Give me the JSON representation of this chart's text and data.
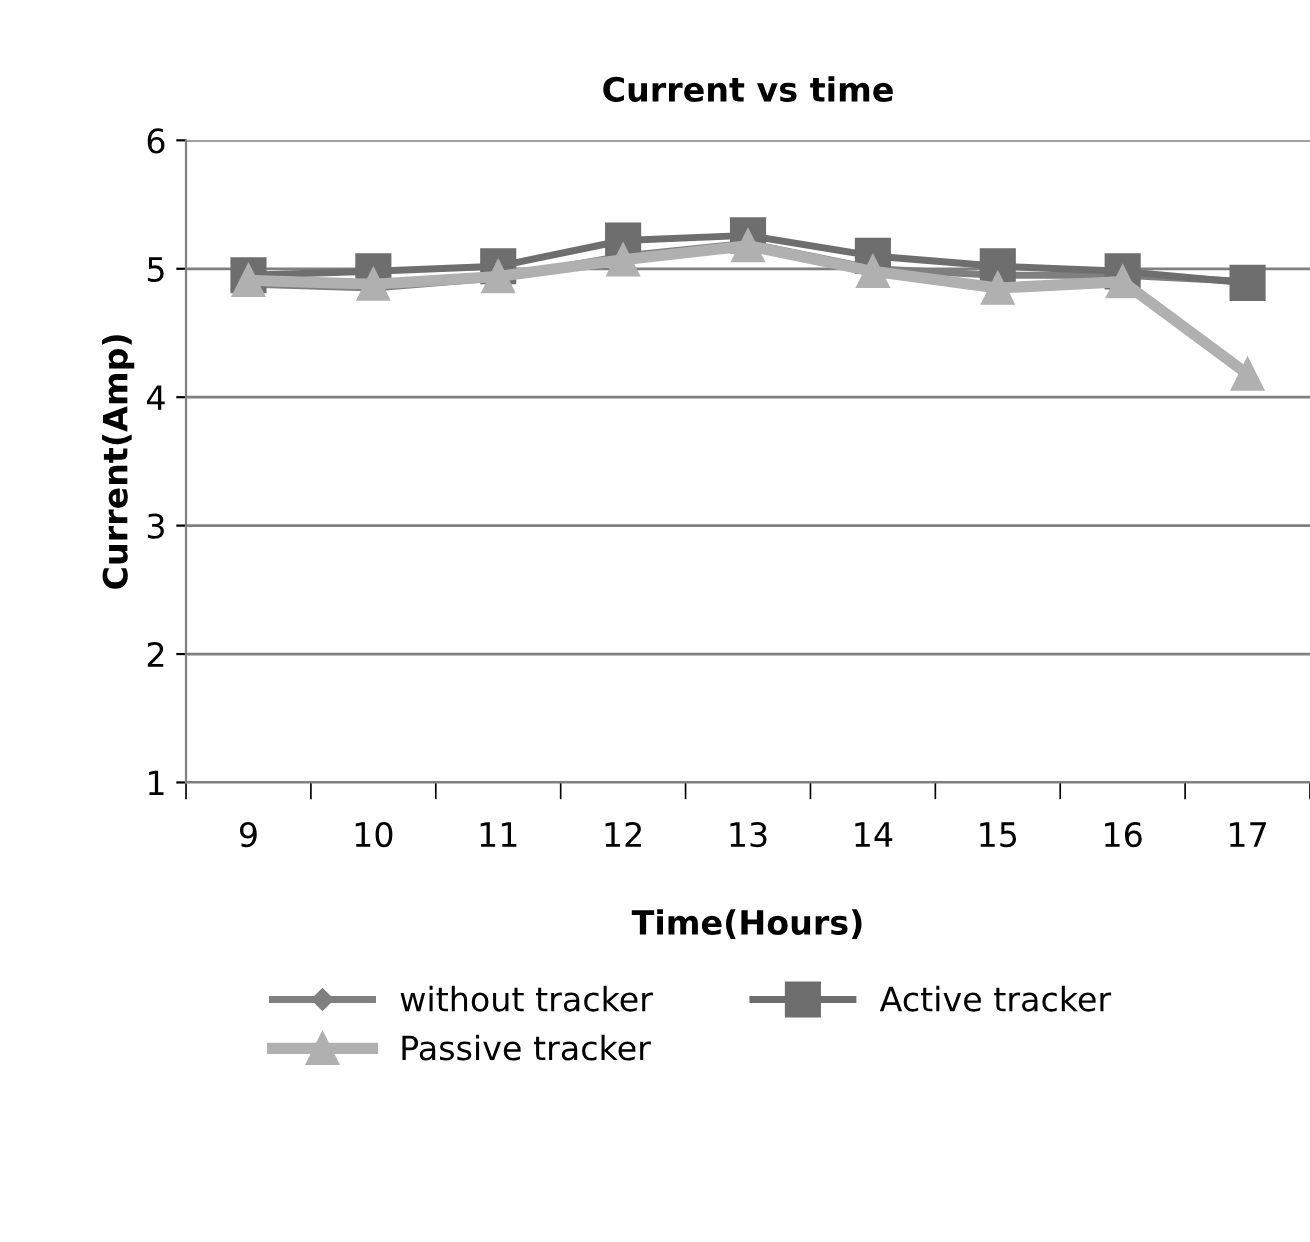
{
  "chart_data": {
    "type": "line",
    "title": "Current vs time",
    "xlabel": "Time(Hours)",
    "ylabel": "Current(Amp)",
    "categories": [
      "9",
      "10",
      "11",
      "12",
      "13",
      "14",
      "15",
      "16",
      "17"
    ],
    "series": [
      {
        "name": "without tracker",
        "color": "#7f7f7f",
        "marker": "diamond",
        "values": [
          4.88,
          4.85,
          4.93,
          5.1,
          5.2,
          5.0,
          4.95,
          4.95,
          4.9
        ]
      },
      {
        "name": "Active tracker",
        "color": "#6e6e6e",
        "marker": "square",
        "values": [
          4.95,
          4.98,
          5.02,
          5.22,
          5.26,
          5.1,
          5.02,
          4.98,
          4.89
        ]
      },
      {
        "name": "Passive tracker",
        "color": "#b0b0b0",
        "marker": "triangle",
        "values": [
          4.91,
          4.88,
          4.94,
          5.07,
          5.18,
          4.98,
          4.85,
          4.9,
          4.18
        ]
      }
    ],
    "ylim": [
      1,
      6
    ],
    "yticks": [
      1,
      2,
      3,
      4,
      5,
      6
    ],
    "grid": "y",
    "legend": "bottom"
  }
}
